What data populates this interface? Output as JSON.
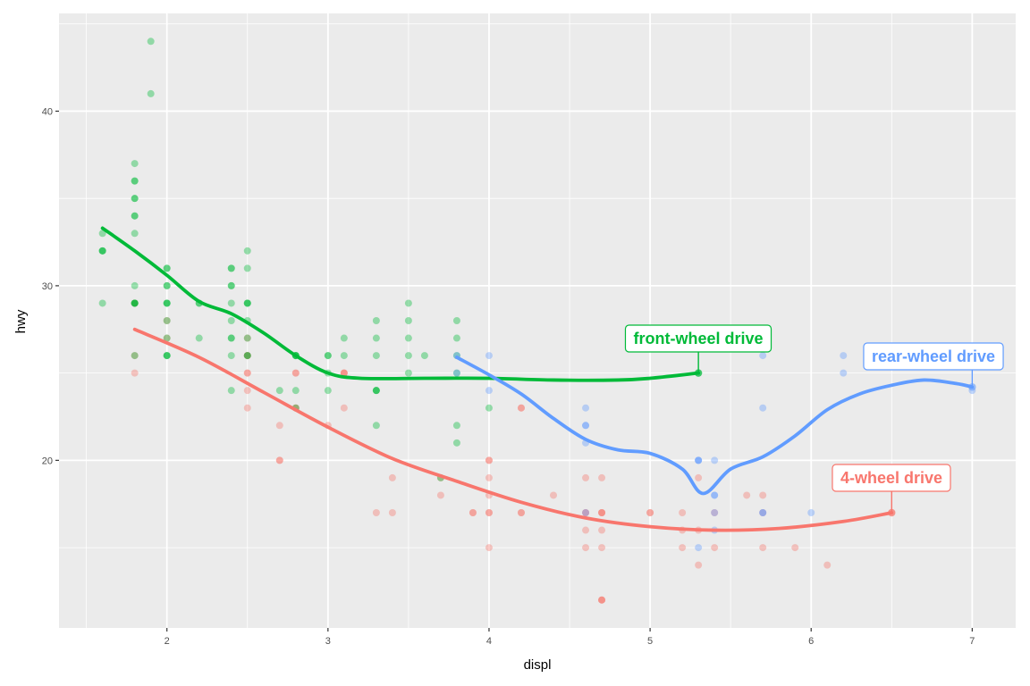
{
  "chart_data": {
    "type": "scatter",
    "title": "",
    "xlabel": "displ",
    "ylabel": "hwy",
    "xlim": [
      1.33,
      7.27
    ],
    "ylim": [
      10.4,
      45.6
    ],
    "x_ticks": [
      2,
      3,
      4,
      5,
      6,
      7
    ],
    "y_ticks": [
      20,
      30,
      40
    ],
    "x_tick_labels": [
      "2",
      "3",
      "4",
      "5",
      "6",
      "7"
    ],
    "y_tick_labels": [
      "20",
      "30",
      "40"
    ],
    "grid": true,
    "legend": "none",
    "series": [
      {
        "key": "4",
        "color": "#F8766D",
        "points": [
          [
            1.8,
            26
          ],
          [
            1.8,
            25
          ],
          [
            2.0,
            28
          ],
          [
            2.0,
            27
          ],
          [
            2.8,
            25
          ],
          [
            2.8,
            25
          ],
          [
            3.1,
            25
          ],
          [
            3.1,
            25
          ],
          [
            2.8,
            23
          ],
          [
            3.1,
            23
          ],
          [
            4.2,
            23
          ],
          [
            2.8,
            23
          ],
          [
            3.1,
            25
          ],
          [
            4.2,
            23
          ],
          [
            2.5,
            27
          ],
          [
            2.5,
            25
          ],
          [
            2.5,
            26
          ],
          [
            2.5,
            24
          ],
          [
            2.5,
            26
          ],
          [
            2.5,
            26
          ],
          [
            2.5,
            23
          ],
          [
            2.5,
            25
          ],
          [
            2.7,
            22
          ],
          [
            2.7,
            20
          ],
          [
            2.7,
            20
          ],
          [
            3.0,
            22
          ],
          [
            3.4,
            19
          ],
          [
            3.4,
            17
          ],
          [
            3.3,
            17
          ],
          [
            3.7,
            19
          ],
          [
            3.7,
            18
          ],
          [
            3.9,
            17
          ],
          [
            3.9,
            17
          ],
          [
            4.0,
            20
          ],
          [
            4.0,
            20
          ],
          [
            4.0,
            19
          ],
          [
            4.0,
            17
          ],
          [
            4.0,
            17
          ],
          [
            4.0,
            18
          ],
          [
            4.0,
            15
          ],
          [
            4.2,
            17
          ],
          [
            4.2,
            17
          ],
          [
            4.4,
            18
          ],
          [
            4.6,
            17
          ],
          [
            4.6,
            17
          ],
          [
            4.6,
            19
          ],
          [
            4.6,
            16
          ],
          [
            4.6,
            15
          ],
          [
            4.7,
            19
          ],
          [
            4.7,
            17
          ],
          [
            4.7,
            17
          ],
          [
            4.7,
            17
          ],
          [
            4.7,
            16
          ],
          [
            4.7,
            15
          ],
          [
            4.7,
            12
          ],
          [
            4.7,
            12
          ],
          [
            4.7,
            12
          ],
          [
            5.0,
            17
          ],
          [
            5.0,
            17
          ],
          [
            5.2,
            17
          ],
          [
            5.2,
            16
          ],
          [
            5.2,
            15
          ],
          [
            5.3,
            19
          ],
          [
            5.3,
            16
          ],
          [
            5.3,
            14
          ],
          [
            5.4,
            17
          ],
          [
            5.4,
            15
          ],
          [
            5.6,
            18
          ],
          [
            5.7,
            18
          ],
          [
            5.7,
            17
          ],
          [
            5.7,
            15
          ],
          [
            5.9,
            15
          ],
          [
            6.1,
            14
          ],
          [
            6.5,
            17
          ],
          [
            1.8,
            29
          ],
          [
            1.8,
            29
          ]
        ],
        "smooth": [
          [
            1.8,
            27.5
          ],
          [
            2.2,
            25.9
          ],
          [
            2.6,
            23.9
          ],
          [
            3.0,
            21.9
          ],
          [
            3.4,
            20.1
          ],
          [
            3.8,
            18.8
          ],
          [
            4.2,
            17.6
          ],
          [
            4.6,
            16.7
          ],
          [
            5.0,
            16.2
          ],
          [
            5.4,
            16.0
          ],
          [
            5.8,
            16.1
          ],
          [
            6.2,
            16.5
          ],
          [
            6.5,
            17.0
          ]
        ]
      },
      {
        "key": "f",
        "color": "#00BA38",
        "points": [
          [
            1.8,
            29
          ],
          [
            1.8,
            29
          ],
          [
            2.0,
            31
          ],
          [
            2.0,
            30
          ],
          [
            2.8,
            26
          ],
          [
            2.8,
            26
          ],
          [
            3.1,
            27
          ],
          [
            2.8,
            26
          ],
          [
            1.8,
            29
          ],
          [
            1.8,
            29
          ],
          [
            2.0,
            28
          ],
          [
            2.0,
            29
          ],
          [
            2.8,
            26
          ],
          [
            3.8,
            26
          ],
          [
            3.8,
            27
          ],
          [
            4.0,
            23
          ],
          [
            3.3,
            24
          ],
          [
            3.3,
            24
          ],
          [
            3.8,
            25
          ],
          [
            3.8,
            22
          ],
          [
            3.8,
            21
          ],
          [
            3.3,
            28
          ],
          [
            3.0,
            24
          ],
          [
            3.3,
            22
          ],
          [
            3.3,
            24
          ],
          [
            1.8,
            26
          ],
          [
            1.6,
            33
          ],
          [
            1.6,
            32
          ],
          [
            1.6,
            32
          ],
          [
            1.6,
            29
          ],
          [
            1.6,
            32
          ],
          [
            1.8,
            34
          ],
          [
            1.8,
            36
          ],
          [
            1.8,
            36
          ],
          [
            2.0,
            29
          ],
          [
            2.0,
            26
          ],
          [
            2.0,
            27
          ],
          [
            2.0,
            30
          ],
          [
            2.0,
            31
          ],
          [
            2.0,
            26
          ],
          [
            2.0,
            26
          ],
          [
            2.4,
            31
          ],
          [
            2.4,
            30
          ],
          [
            2.4,
            30
          ],
          [
            2.4,
            27
          ],
          [
            2.4,
            28
          ],
          [
            2.4,
            31
          ],
          [
            2.4,
            29
          ],
          [
            2.4,
            26
          ],
          [
            2.4,
            24
          ],
          [
            2.4,
            27
          ],
          [
            2.5,
            26
          ],
          [
            2.5,
            26
          ],
          [
            2.5,
            29
          ],
          [
            2.5,
            29
          ],
          [
            2.5,
            28
          ],
          [
            2.5,
            32
          ],
          [
            2.5,
            31
          ],
          [
            2.5,
            27
          ],
          [
            2.2,
            29
          ],
          [
            2.2,
            27
          ],
          [
            2.2,
            29
          ],
          [
            3.0,
            26
          ],
          [
            3.0,
            26
          ],
          [
            3.0,
            25
          ],
          [
            3.1,
            26
          ],
          [
            3.3,
            27
          ],
          [
            3.3,
            26
          ],
          [
            3.5,
            29
          ],
          [
            3.5,
            27
          ],
          [
            3.5,
            26
          ],
          [
            3.5,
            25
          ],
          [
            3.5,
            28
          ],
          [
            3.6,
            26
          ],
          [
            3.8,
            28
          ],
          [
            5.3,
            25
          ],
          [
            2.7,
            24
          ],
          [
            2.8,
            24
          ],
          [
            2.8,
            23
          ],
          [
            3.7,
            19
          ],
          [
            1.9,
            44
          ],
          [
            1.9,
            41
          ],
          [
            1.8,
            37
          ],
          [
            1.8,
            35
          ],
          [
            1.8,
            35
          ],
          [
            1.8,
            30
          ],
          [
            1.8,
            33
          ],
          [
            1.8,
            34
          ],
          [
            2.0,
            29
          ],
          [
            2.5,
            29
          ]
        ],
        "smooth": [
          [
            1.6,
            33.3
          ],
          [
            1.8,
            32.0
          ],
          [
            2.0,
            30.6
          ],
          [
            2.2,
            29.1
          ],
          [
            2.4,
            28.4
          ],
          [
            2.6,
            27.3
          ],
          [
            2.8,
            26.0
          ],
          [
            3.0,
            25.0
          ],
          [
            3.2,
            24.7
          ],
          [
            3.6,
            24.7
          ],
          [
            4.0,
            24.7
          ],
          [
            4.4,
            24.6
          ],
          [
            4.8,
            24.6
          ],
          [
            5.0,
            24.7
          ],
          [
            5.3,
            25.0
          ]
        ]
      },
      {
        "key": "r",
        "color": "#619CFF",
        "points": [
          [
            3.8,
            26
          ],
          [
            3.8,
            25
          ],
          [
            4.0,
            26
          ],
          [
            4.0,
            24
          ],
          [
            4.6,
            23
          ],
          [
            4.6,
            22
          ],
          [
            4.6,
            21
          ],
          [
            4.6,
            22
          ],
          [
            5.3,
            20
          ],
          [
            5.3,
            20
          ],
          [
            5.3,
            20
          ],
          [
            5.3,
            15
          ],
          [
            5.4,
            20
          ],
          [
            5.4,
            18
          ],
          [
            5.4,
            16
          ],
          [
            5.4,
            18
          ],
          [
            5.4,
            17
          ],
          [
            5.7,
            26
          ],
          [
            5.7,
            23
          ],
          [
            5.7,
            17
          ],
          [
            6.0,
            17
          ],
          [
            6.2,
            26
          ],
          [
            6.2,
            25
          ],
          [
            7.0,
            24
          ],
          [
            4.6,
            17
          ],
          [
            5.7,
            17
          ]
        ],
        "smooth": [
          [
            3.8,
            25.9
          ],
          [
            4.0,
            24.9
          ],
          [
            4.2,
            23.8
          ],
          [
            4.4,
            22.4
          ],
          [
            4.6,
            21.2
          ],
          [
            4.8,
            20.6
          ],
          [
            5.0,
            20.4
          ],
          [
            5.2,
            19.5
          ],
          [
            5.33,
            18.1
          ],
          [
            5.5,
            19.5
          ],
          [
            5.7,
            20.2
          ],
          [
            5.9,
            21.4
          ],
          [
            6.1,
            22.9
          ],
          [
            6.3,
            23.8
          ],
          [
            6.5,
            24.3
          ],
          [
            6.7,
            24.6
          ],
          [
            6.9,
            24.4
          ],
          [
            7.0,
            24.2
          ]
        ]
      }
    ],
    "annotations": [
      {
        "series": "f",
        "label": "front-wheel drive",
        "point": [
          5.3,
          25.0
        ]
      },
      {
        "series": "r",
        "label": "rear-wheel drive",
        "point": [
          7.0,
          24.2
        ]
      },
      {
        "series": "4",
        "label": "4-wheel drive",
        "point": [
          6.5,
          17.0
        ]
      }
    ]
  }
}
